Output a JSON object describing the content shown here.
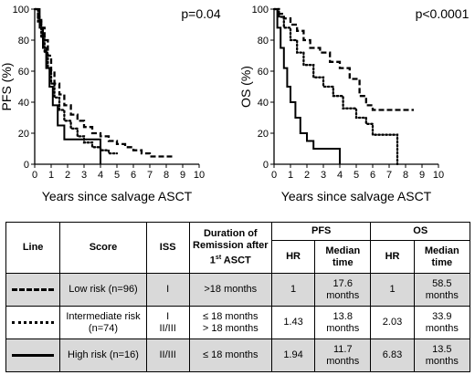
{
  "chart_data": [
    {
      "type": "line",
      "step": true,
      "ylabel": "PFS (%)",
      "xlabel": "Years since salvage ASCT",
      "annotation": "p=0.04",
      "xlim": [
        0,
        10
      ],
      "ylim": [
        0,
        100
      ],
      "xticks": [
        "0",
        "1",
        "2",
        "3",
        "4",
        "5",
        "6",
        "7",
        "8",
        "9",
        "10"
      ],
      "yticks": [
        "0",
        "20",
        "40",
        "60",
        "80",
        "100"
      ],
      "series": [
        {
          "style": "dashed",
          "x": [
            0,
            0.2,
            0.4,
            0.6,
            0.8,
            1.0,
            1.2,
            1.5,
            1.8,
            2.2,
            2.6,
            3.0,
            3.5,
            4.0,
            4.5,
            5.0,
            5.5,
            6.0,
            6.5,
            7.0,
            8.5
          ],
          "y": [
            100,
            95,
            88,
            80,
            70,
            60,
            52,
            45,
            38,
            32,
            28,
            24,
            20,
            18,
            15,
            13,
            11,
            9,
            7,
            5,
            5
          ]
        },
        {
          "style": "dotted",
          "x": [
            0,
            0.2,
            0.4,
            0.6,
            0.8,
            1.0,
            1.2,
            1.5,
            1.8,
            2.2,
            2.6,
            3.0,
            3.5,
            4.0,
            4.5,
            5.0
          ],
          "y": [
            100,
            92,
            82,
            72,
            62,
            52,
            43,
            35,
            28,
            23,
            18,
            14,
            11,
            9,
            7,
            7
          ]
        },
        {
          "style": "solid",
          "x": [
            0,
            0.3,
            0.5,
            0.7,
            0.9,
            1.1,
            1.4,
            1.8,
            2.2,
            4.0,
            4.0
          ],
          "y": [
            100,
            88,
            75,
            62,
            50,
            38,
            25,
            16,
            16,
            16,
            0
          ]
        }
      ]
    },
    {
      "type": "line",
      "step": true,
      "ylabel": "OS (%)",
      "xlabel": "Years since salvage ASCT",
      "annotation": "p<0.0001",
      "xlim": [
        0,
        10
      ],
      "ylim": [
        0,
        100
      ],
      "xticks": [
        "0",
        "1",
        "2",
        "3",
        "4",
        "5",
        "6",
        "7",
        "8",
        "9",
        "10"
      ],
      "yticks": [
        "0",
        "20",
        "40",
        "60",
        "80",
        "100"
      ],
      "series": [
        {
          "style": "dashed",
          "x": [
            0,
            0.3,
            0.6,
            1.0,
            1.4,
            1.8,
            2.2,
            2.8,
            3.4,
            4.0,
            4.6,
            5.2,
            5.6,
            6.0,
            8.5
          ],
          "y": [
            100,
            97,
            94,
            90,
            86,
            80,
            75,
            72,
            66,
            62,
            55,
            44,
            38,
            35,
            35
          ]
        },
        {
          "style": "dotted",
          "x": [
            0,
            0.3,
            0.6,
            1.0,
            1.4,
            1.8,
            2.4,
            3.0,
            3.6,
            4.2,
            5.0,
            5.6,
            6.0,
            7.5,
            7.5
          ],
          "y": [
            100,
            95,
            88,
            80,
            72,
            64,
            56,
            50,
            44,
            36,
            30,
            26,
            19,
            15,
            0
          ]
        },
        {
          "style": "solid",
          "x": [
            0,
            0.2,
            0.4,
            0.6,
            0.8,
            1.0,
            1.3,
            1.6,
            2.0,
            2.4,
            4.0,
            4.0
          ],
          "y": [
            100,
            88,
            75,
            62,
            50,
            40,
            30,
            20,
            15,
            10,
            10,
            0
          ]
        }
      ]
    }
  ],
  "table": {
    "headers": {
      "line": "Line",
      "score": "Score",
      "iss": "ISS",
      "duration": "Duration of Remission after 1",
      "duration_sup": "st",
      "duration_tail": " ASCT",
      "pfs": "PFS",
      "os": "OS",
      "hr": "HR",
      "median": "Median time"
    },
    "rows": [
      {
        "line": "dashed",
        "score": "Low risk (n=96)",
        "iss": "I",
        "duration": ">18 months",
        "pfs_hr": "1",
        "pfs_median": "17.6 months",
        "os_hr": "1",
        "os_median": "58.5 months"
      },
      {
        "line": "dotted",
        "score": "Intermediate risk (n=74)",
        "iss_1": "I",
        "iss_2": "II/III",
        "duration_1": "≤ 18 months",
        "duration_2": "> 18 months",
        "pfs_hr": "1.43",
        "pfs_median": "13.8 months",
        "os_hr": "2.03",
        "os_median": "33.9 months"
      },
      {
        "line": "solid",
        "score": "High risk (n=16)",
        "iss": "II/III",
        "duration": "≤ 18 months",
        "pfs_hr": "1.94",
        "pfs_median": "11.7 months",
        "os_hr": "6.83",
        "os_median": "13.5 months"
      }
    ]
  }
}
